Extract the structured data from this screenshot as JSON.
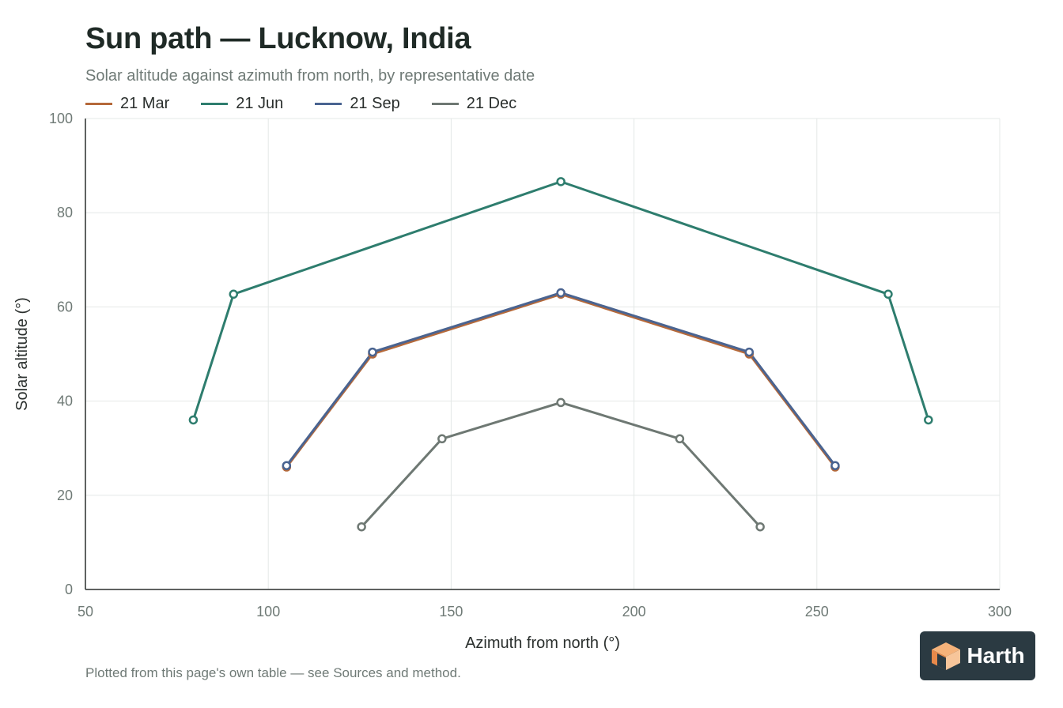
{
  "title": "Sun path — Lucknow, India",
  "subtitle": "Solar altitude against azimuth from north, by representative date",
  "footnote": "Plotted from this page's own table — see Sources and method.",
  "brand": {
    "name": "Harth",
    "logo_icon": "cube-icon"
  },
  "colors": {
    "mar": "#b5693a",
    "jun": "#2e7d6e",
    "sep": "#4a6491",
    "dec": "#6e7873",
    "axis": "#2a2f2d",
    "grid": "#e4e8e7",
    "tick": "#6f7a76"
  },
  "chart_data": {
    "type": "line",
    "xlabel": "Azimuth from north (°)",
    "ylabel": "Solar altitude (°)",
    "xlim": [
      50,
      300
    ],
    "ylim": [
      0,
      100
    ],
    "xticks": [
      50,
      100,
      150,
      200,
      250,
      300
    ],
    "yticks": [
      0,
      20,
      40,
      60,
      80,
      100
    ],
    "grid": true,
    "legend_position": "top-left",
    "series": [
      {
        "name": "21 Mar",
        "color": "#b5693a",
        "points": [
          [
            105,
            26
          ],
          [
            128.5,
            50
          ],
          [
            180,
            62.7
          ],
          [
            231.5,
            50
          ],
          [
            255,
            26
          ]
        ]
      },
      {
        "name": "21 Jun",
        "color": "#2e7d6e",
        "points": [
          [
            79.5,
            36
          ],
          [
            90.5,
            62.7
          ],
          [
            180,
            86.6
          ],
          [
            269.5,
            62.7
          ],
          [
            280.5,
            36
          ]
        ]
      },
      {
        "name": "21 Sep",
        "color": "#4a6491",
        "points": [
          [
            105,
            26.3
          ],
          [
            128.5,
            50.4
          ],
          [
            180,
            63
          ],
          [
            231.5,
            50.4
          ],
          [
            255,
            26.3
          ]
        ]
      },
      {
        "name": "21 Dec",
        "color": "#6e7873",
        "points": [
          [
            125.5,
            13.3
          ],
          [
            147.5,
            32
          ],
          [
            180,
            39.7
          ],
          [
            212.5,
            32
          ],
          [
            234.5,
            13.3
          ]
        ]
      }
    ]
  }
}
